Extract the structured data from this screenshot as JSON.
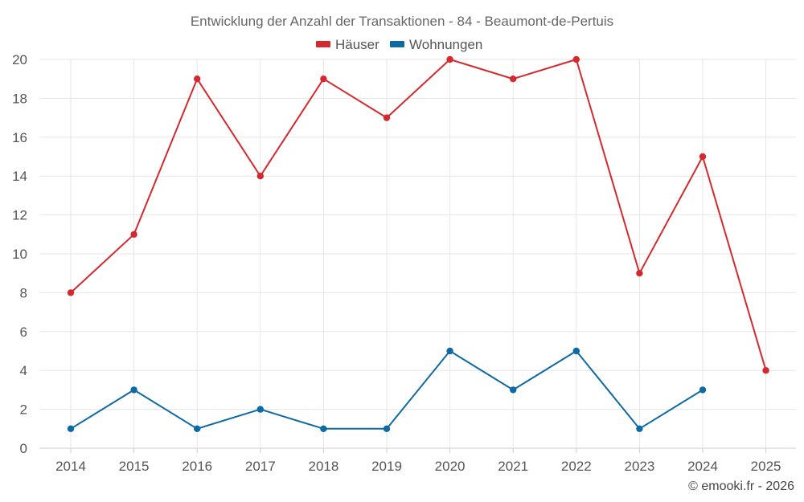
{
  "chart_data": {
    "type": "line",
    "title": "Entwicklung der Anzahl der Transaktionen - 84 - Beaumont-de-Pertuis",
    "categories": [
      "2014",
      "2015",
      "2016",
      "2017",
      "2018",
      "2019",
      "2020",
      "2021",
      "2022",
      "2023",
      "2024",
      "2025"
    ],
    "series": [
      {
        "name": "Häuser",
        "color": "#d42a2f",
        "values": [
          8,
          11,
          19,
          14,
          19,
          17,
          20,
          19,
          20,
          9,
          15,
          4
        ]
      },
      {
        "name": "Wohnungen",
        "color": "#0e6aa3",
        "values": [
          1,
          3,
          1,
          2,
          1,
          1,
          5,
          3,
          5,
          1,
          3,
          null
        ]
      }
    ],
    "ylim": [
      0,
      20
    ],
    "yticks": [
      0,
      2,
      4,
      6,
      8,
      10,
      12,
      14,
      16,
      18,
      20
    ],
    "grid": true,
    "legend_position": "top-center",
    "xlabel": "",
    "ylabel": ""
  },
  "credit": "© emooki.fr - 2026"
}
